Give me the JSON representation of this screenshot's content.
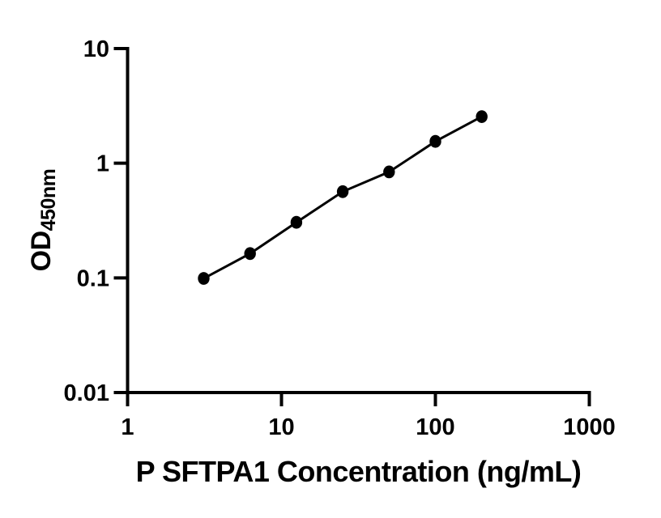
{
  "chart_data": {
    "type": "scatter",
    "series_name": "standard-curve",
    "x": [
      3.125,
      6.25,
      12.5,
      25,
      50,
      100,
      200
    ],
    "y": [
      0.099,
      0.163,
      0.305,
      0.565,
      0.84,
      1.55,
      2.55
    ],
    "title": "",
    "xlabel": "P SFTPA1 Concentration (ng/mL)",
    "ylabel_main": "OD",
    "ylabel_sub": "450nm",
    "xscale": "log",
    "yscale": "log",
    "xlim": [
      1,
      1000
    ],
    "ylim": [
      0.01,
      10
    ],
    "x_ticks": [
      1,
      10,
      100,
      1000
    ],
    "x_tick_labels": [
      "1",
      "10",
      "100",
      "1000"
    ],
    "y_ticks": [
      10,
      1,
      0.1,
      0.01
    ],
    "y_tick_labels": [
      "10",
      "1",
      "0.1",
      "0.01"
    ],
    "grid": false,
    "legend": "none",
    "marker_shape": "filled-circle",
    "line_style": "solid",
    "ink_color": "#000000",
    "background_color": "#ffffff"
  }
}
